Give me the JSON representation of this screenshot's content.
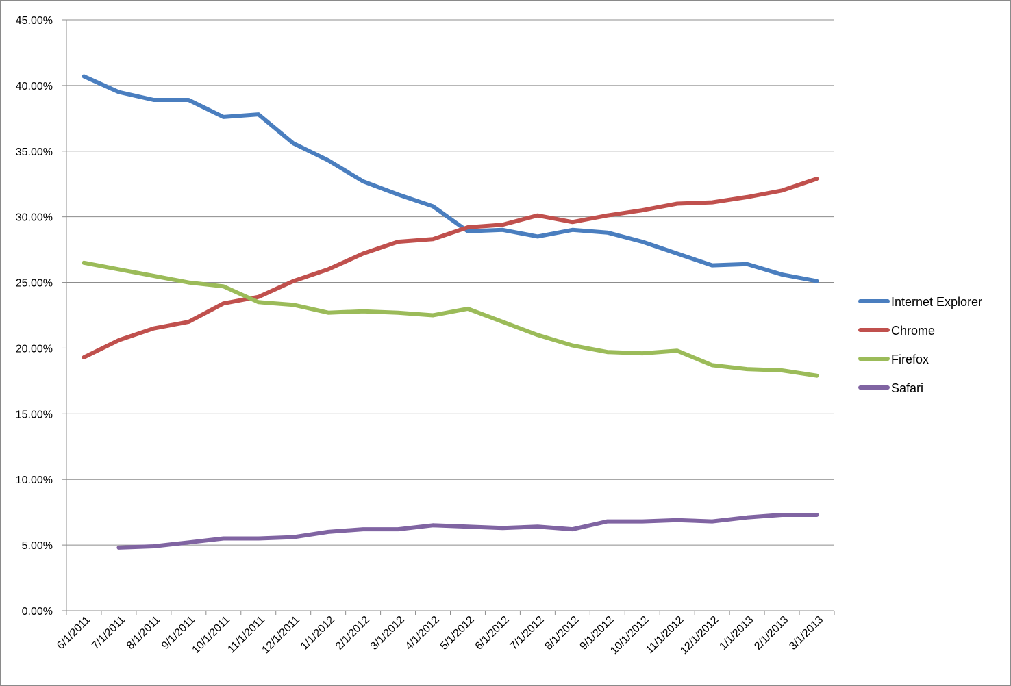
{
  "chart_data": {
    "type": "line",
    "title": "",
    "xlabel": "",
    "ylabel": "",
    "x": [
      "6/1/2011",
      "7/1/2011",
      "8/1/2011",
      "9/1/2011",
      "10/1/2011",
      "11/1/2011",
      "12/1/2011",
      "1/1/2012",
      "2/1/2012",
      "3/1/2012",
      "4/1/2012",
      "5/1/2012",
      "6/1/2012",
      "7/1/2012",
      "8/1/2012",
      "9/1/2012",
      "10/1/2012",
      "11/1/2012",
      "12/1/2012",
      "1/1/2013",
      "2/1/2013",
      "3/1/2013"
    ],
    "ylim": [
      0,
      45
    ],
    "yticks": [
      "0.00%",
      "5.00%",
      "10.00%",
      "15.00%",
      "20.00%",
      "25.00%",
      "30.00%",
      "35.00%",
      "40.00%",
      "45.00%"
    ],
    "grid": "horizontal",
    "legend_position": "right",
    "series": [
      {
        "name": "Internet Explorer",
        "color": "#4a7ebf",
        "values": [
          40.7,
          39.5,
          38.9,
          38.9,
          37.6,
          37.8,
          35.6,
          34.3,
          32.7,
          31.7,
          30.8,
          28.9,
          29.0,
          28.5,
          29.0,
          28.8,
          28.1,
          27.2,
          26.3,
          26.4,
          25.6,
          25.1
        ]
      },
      {
        "name": "Chrome",
        "color": "#c0504d",
        "values": [
          19.3,
          20.6,
          21.5,
          22.0,
          23.4,
          23.9,
          25.1,
          26.0,
          27.2,
          28.1,
          28.3,
          29.2,
          29.4,
          30.1,
          29.6,
          30.1,
          30.5,
          31.0,
          31.1,
          31.5,
          32.0,
          32.9
        ]
      },
      {
        "name": "Firefox",
        "color": "#9bbb59",
        "values": [
          26.5,
          26.0,
          25.5,
          25.0,
          24.7,
          23.5,
          23.3,
          22.7,
          22.8,
          22.7,
          22.5,
          23.0,
          22.0,
          21.0,
          20.2,
          19.7,
          19.6,
          19.8,
          18.7,
          18.4,
          18.3,
          17.9
        ]
      },
      {
        "name": "Safari",
        "color": "#8064a2",
        "values": [
          null,
          4.8,
          4.9,
          5.2,
          5.5,
          5.5,
          5.6,
          6.0,
          6.2,
          6.2,
          6.5,
          6.4,
          6.3,
          6.4,
          6.2,
          6.8,
          6.8,
          6.9,
          6.8,
          7.1,
          7.3,
          7.3
        ]
      }
    ]
  }
}
